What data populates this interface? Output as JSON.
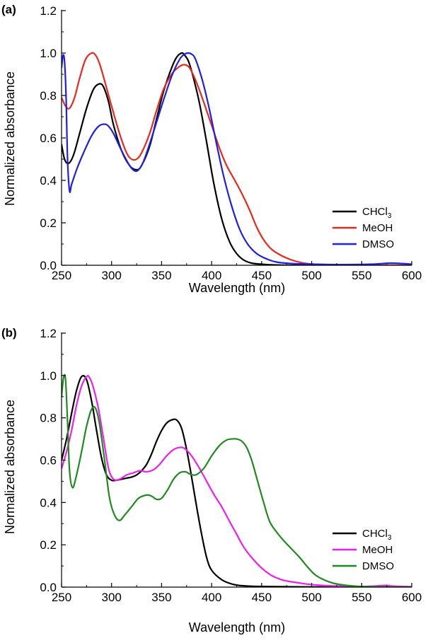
{
  "chart_data": [
    {
      "panel": "(a)",
      "type": "line",
      "xlabel": "Wavelength (nm)",
      "ylabel": "Normalized absorbance",
      "xlim": [
        250,
        600
      ],
      "ylim": [
        0.0,
        1.2
      ],
      "xticks": [
        "250",
        "300",
        "350",
        "400",
        "450",
        "500",
        "550",
        "600"
      ],
      "yticks": [
        "0.0",
        "0.2",
        "0.4",
        "0.6",
        "0.8",
        "1.0",
        "1.2"
      ],
      "legend_position": "bottom-right",
      "series": [
        {
          "name": "CHCl",
          "name_sub": "3",
          "color": "#000000",
          "x": [
            250,
            253,
            257,
            262,
            268,
            275,
            282,
            288,
            292,
            297,
            302,
            310,
            318,
            325,
            330,
            338,
            345,
            352,
            360,
            365,
            370,
            373,
            377,
            382,
            388,
            395,
            402,
            410,
            418,
            425,
            432,
            440,
            450,
            460,
            475,
            500,
            550,
            600
          ],
          "y": [
            0.57,
            0.5,
            0.48,
            0.52,
            0.62,
            0.74,
            0.83,
            0.855,
            0.84,
            0.77,
            0.66,
            0.54,
            0.47,
            0.45,
            0.47,
            0.56,
            0.69,
            0.82,
            0.93,
            0.98,
            1.0,
            0.99,
            0.96,
            0.88,
            0.76,
            0.58,
            0.39,
            0.22,
            0.11,
            0.055,
            0.025,
            0.01,
            0.005,
            0.002,
            0.0,
            0.0,
            0.0,
            0.0
          ]
        },
        {
          "name": "MeOH",
          "color": "#e8291c",
          "x": [
            250,
            254,
            258,
            263,
            268,
            274,
            280,
            284,
            288,
            293,
            300,
            308,
            315,
            320,
            325,
            330,
            338,
            345,
            352,
            360,
            366,
            372,
            378,
            385,
            392,
            400,
            408,
            415,
            422,
            430,
            438,
            445,
            452,
            460,
            470,
            480,
            490,
            500,
            520,
            550,
            600
          ],
          "y": [
            0.79,
            0.75,
            0.74,
            0.79,
            0.88,
            0.97,
            1.0,
            0.99,
            0.95,
            0.87,
            0.75,
            0.62,
            0.53,
            0.5,
            0.5,
            0.53,
            0.62,
            0.73,
            0.83,
            0.9,
            0.93,
            0.945,
            0.93,
            0.86,
            0.77,
            0.66,
            0.55,
            0.47,
            0.41,
            0.34,
            0.26,
            0.18,
            0.12,
            0.075,
            0.045,
            0.025,
            0.012,
            0.006,
            0.002,
            0.0,
            0.0
          ]
        },
        {
          "name": "DMSO",
          "color": "#1f1fe6",
          "x": [
            250,
            251.5,
            253,
            254.5,
            256,
            258,
            260,
            265,
            272,
            280,
            287,
            293,
            297,
            302,
            310,
            318,
            323,
            327,
            332,
            340,
            350,
            360,
            368,
            373,
            377,
            380,
            383,
            387,
            392,
            398,
            405,
            412,
            420,
            428,
            436,
            445,
            455,
            465,
            480,
            500,
            530,
            560,
            580,
            600
          ],
          "y": [
            0.93,
            0.99,
            0.96,
            0.8,
            0.5,
            0.35,
            0.38,
            0.45,
            0.53,
            0.61,
            0.655,
            0.665,
            0.655,
            0.62,
            0.54,
            0.47,
            0.445,
            0.45,
            0.49,
            0.6,
            0.75,
            0.89,
            0.97,
            0.995,
            1.0,
            0.995,
            0.98,
            0.93,
            0.85,
            0.73,
            0.57,
            0.42,
            0.28,
            0.17,
            0.1,
            0.055,
            0.03,
            0.015,
            0.008,
            0.005,
            0.003,
            0.005,
            0.01,
            0.005
          ]
        }
      ]
    },
    {
      "panel": "(b)",
      "type": "line",
      "xlabel": "Wavelength (nm)",
      "ylabel": "Normalized absorbance",
      "xlim": [
        250,
        600
      ],
      "ylim": [
        0.0,
        1.2
      ],
      "xticks": [
        "250",
        "300",
        "350",
        "400",
        "450",
        "500",
        "550",
        "600"
      ],
      "yticks": [
        "0.0",
        "0.2",
        "0.4",
        "0.6",
        "0.8",
        "1.0",
        "1.2"
      ],
      "legend_position": "bottom-right",
      "series": [
        {
          "name": "CHCl",
          "name_sub": "3",
          "color": "#000000",
          "x": [
            250,
            255,
            260,
            265,
            270,
            275,
            280,
            285,
            290,
            295,
            300,
            305,
            310,
            315,
            320,
            325,
            330,
            335,
            340,
            345,
            350,
            355,
            360,
            365,
            370,
            375,
            380,
            385,
            390,
            395,
            400,
            410,
            420,
            430,
            450,
            500,
            600
          ],
          "y": [
            0.6,
            0.7,
            0.82,
            0.93,
            0.995,
            0.98,
            0.88,
            0.74,
            0.61,
            0.53,
            0.505,
            0.505,
            0.51,
            0.515,
            0.52,
            0.53,
            0.55,
            0.58,
            0.63,
            0.69,
            0.74,
            0.775,
            0.79,
            0.79,
            0.75,
            0.65,
            0.52,
            0.38,
            0.25,
            0.14,
            0.08,
            0.035,
            0.015,
            0.007,
            0.003,
            0.001,
            0.0
          ]
        },
        {
          "name": "MeOH",
          "color": "#ee1fee",
          "x": [
            250,
            255,
            260,
            265,
            270,
            275,
            278,
            282,
            287,
            292,
            297,
            302,
            308,
            315,
            322,
            328,
            335,
            342,
            348,
            355,
            362,
            368,
            373,
            380,
            388,
            395,
            402,
            410,
            418,
            425,
            432,
            440,
            450,
            460,
            470,
            480,
            490,
            500,
            520,
            550,
            575,
            580,
            600
          ],
          "y": [
            0.56,
            0.64,
            0.74,
            0.86,
            0.95,
            0.995,
            0.99,
            0.94,
            0.84,
            0.7,
            0.56,
            0.51,
            0.51,
            0.53,
            0.54,
            0.55,
            0.545,
            0.555,
            0.58,
            0.62,
            0.65,
            0.66,
            0.655,
            0.62,
            0.56,
            0.5,
            0.44,
            0.38,
            0.31,
            0.25,
            0.19,
            0.14,
            0.09,
            0.055,
            0.035,
            0.025,
            0.018,
            0.012,
            0.006,
            0.003,
            0.008,
            0.005,
            0.002
          ]
        },
        {
          "name": "DMSO",
          "color": "#1f8a1f",
          "x": [
            250,
            252,
            254,
            256,
            258,
            261,
            265,
            270,
            275,
            280,
            284,
            288,
            293,
            298,
            303,
            308,
            313,
            320,
            327,
            335,
            340,
            345,
            350,
            356,
            362,
            368,
            374,
            378,
            384,
            392,
            400,
            408,
            415,
            420,
            425,
            430,
            435,
            440,
            446,
            452,
            458,
            465,
            472,
            480,
            488,
            495,
            503,
            512,
            522,
            535,
            550,
            570,
            600
          ],
          "y": [
            0.9,
            0.99,
            0.98,
            0.78,
            0.55,
            0.47,
            0.53,
            0.64,
            0.76,
            0.84,
            0.845,
            0.77,
            0.6,
            0.42,
            0.34,
            0.315,
            0.34,
            0.38,
            0.42,
            0.435,
            0.43,
            0.415,
            0.42,
            0.46,
            0.51,
            0.54,
            0.545,
            0.535,
            0.53,
            0.56,
            0.62,
            0.67,
            0.695,
            0.7,
            0.7,
            0.69,
            0.66,
            0.6,
            0.5,
            0.4,
            0.31,
            0.26,
            0.22,
            0.18,
            0.14,
            0.1,
            0.06,
            0.035,
            0.018,
            0.008,
            0.003,
            0.001,
            0.0
          ]
        }
      ]
    }
  ]
}
